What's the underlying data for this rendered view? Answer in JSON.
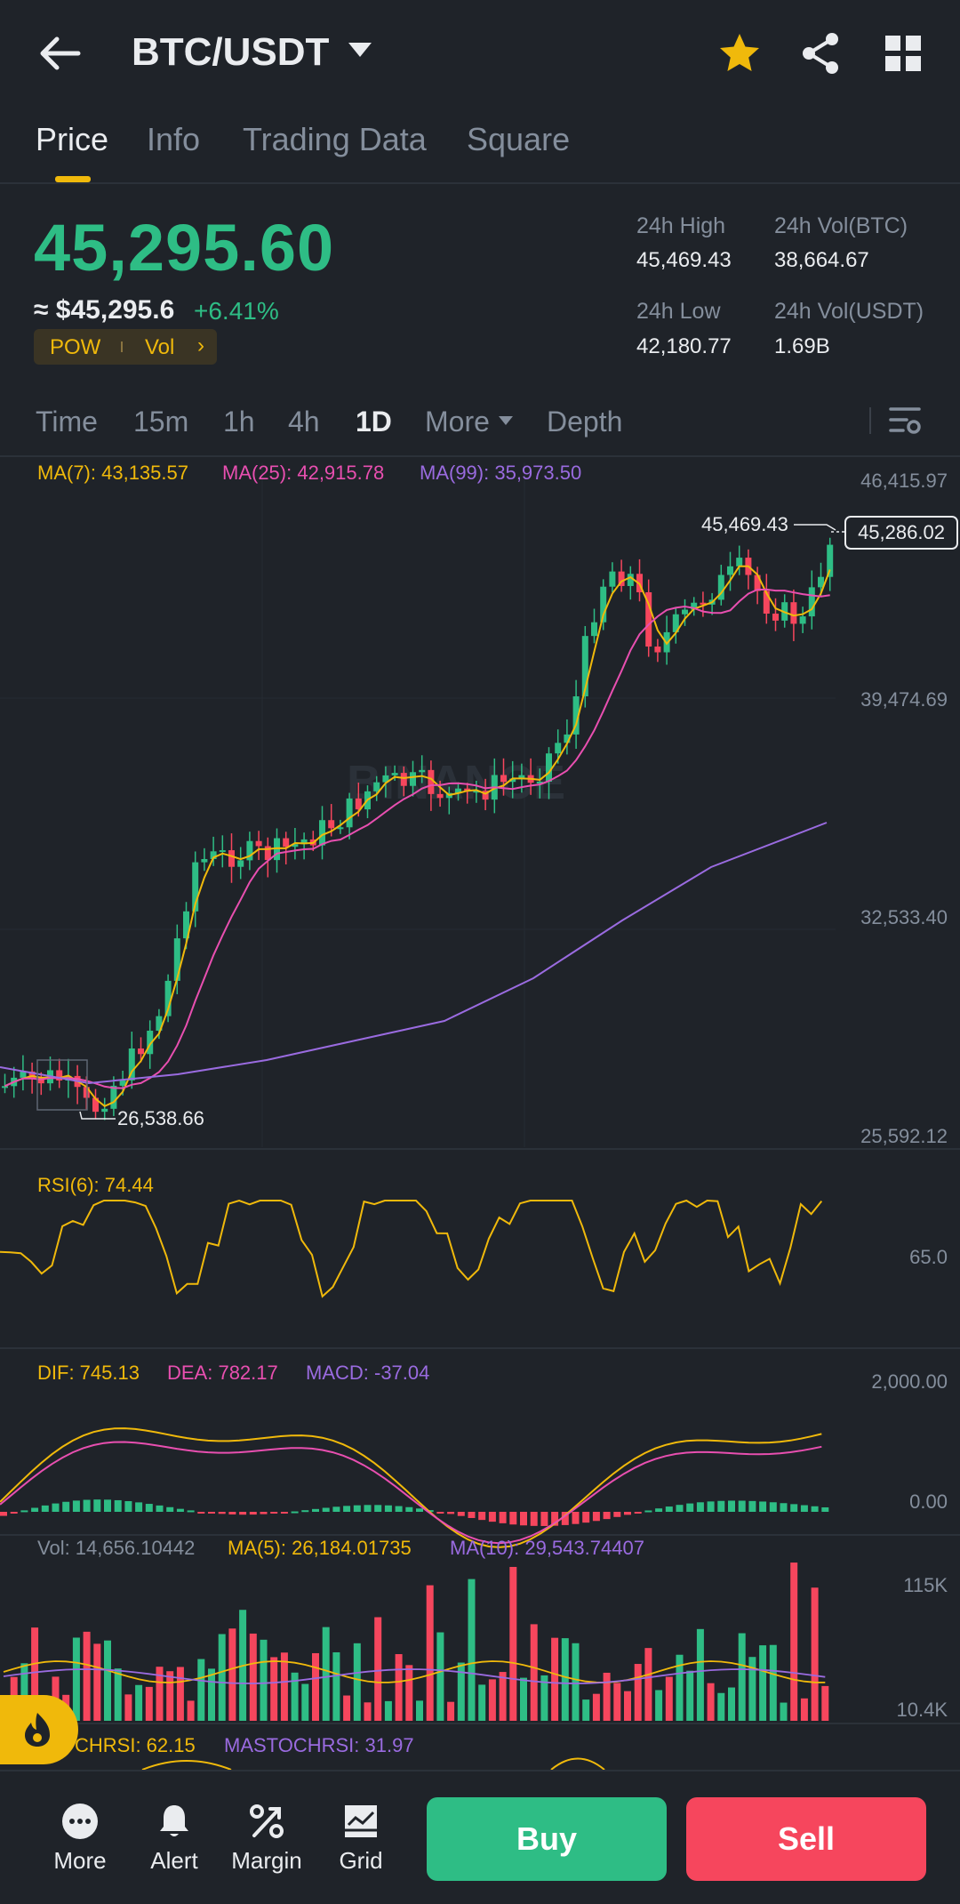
{
  "header": {
    "pair": "BTC/USDT"
  },
  "tabs": [
    {
      "label": "Price",
      "active": true
    },
    {
      "label": "Info"
    },
    {
      "label": "Trading Data"
    },
    {
      "label": "Square"
    }
  ],
  "ticker": {
    "last_price": "45,295.60",
    "fiat_price": "≈ $45,295.6",
    "change": "+6.41%",
    "tags": [
      "POW",
      "Vol"
    ],
    "high_label": "24h High",
    "high": "45,469.43",
    "low_label": "24h Low",
    "low": "42,180.77",
    "vol_btc_label": "24h Vol(BTC)",
    "vol_btc": "38,664.67",
    "vol_usdt_label": "24h Vol(USDT)",
    "vol_usdt": "1.69B"
  },
  "intervals": [
    "Time",
    "15m",
    "1h",
    "4h",
    "1D",
    "More",
    "Depth"
  ],
  "active_interval": "1D",
  "indicators": {
    "ma7": "MA(7): 43,135.57",
    "ma25": "MA(25): 42,915.78",
    "ma99": "MA(99): 35,973.50",
    "rsi": "RSI(6): 74.44",
    "dif": "DIF: 745.13",
    "dea": "DEA: 782.17",
    "macd": "MACD: -37.04",
    "vol": "Vol: 14,656.10442",
    "vol_ma5": "MA(5): 26,184.01735",
    "vol_ma10": "MA(10): 29,543.74407",
    "stochrsi": "CHRSI: 62.15",
    "mastochrsi": "MASTOCHRSI: 31.97"
  },
  "axes": {
    "price": [
      "46,415.97",
      "39,474.69",
      "32,533.40",
      "25,592.12"
    ],
    "rsi": [
      "65.0"
    ],
    "macd": [
      "2,000.00",
      "0.00"
    ],
    "vol": [
      "115K",
      "10.4K"
    ]
  },
  "markers": {
    "high": "45,469.43",
    "low": "26,538.66",
    "current_price": "45,286.02"
  },
  "watermark": "BINANCE",
  "colors": {
    "up": "#2ebd85",
    "down": "#f6465d",
    "accent": "#f0b90b",
    "ma7": "#f0b90b",
    "ma25": "#e84fb0",
    "ma99": "#9a6be0"
  },
  "bottom_nav": [
    {
      "label": "More",
      "icon": "more-icon"
    },
    {
      "label": "Alert",
      "icon": "bell-icon"
    },
    {
      "label": "Margin",
      "icon": "margin-icon"
    },
    {
      "label": "Grid",
      "icon": "grid-bot-icon"
    }
  ],
  "actions": {
    "buy": "Buy",
    "sell": "Sell"
  }
}
